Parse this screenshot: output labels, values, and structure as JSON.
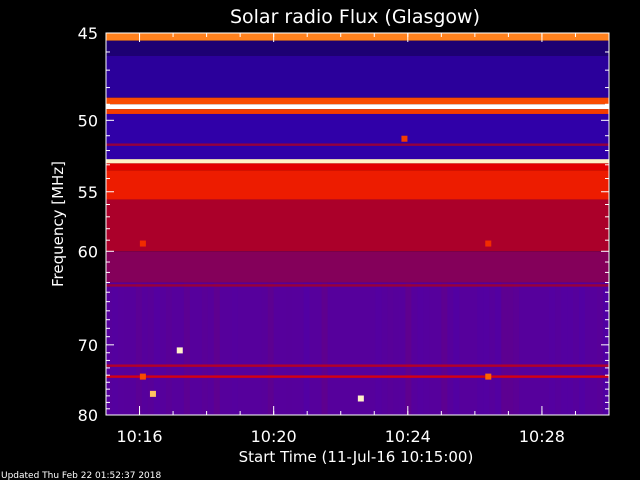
{
  "chart_data": {
    "type": "heatmap",
    "title": "Solar radio Flux (Glasgow)",
    "xlabel": "Start Time (11-Jul-16 10:15:00)",
    "ylabel": "Frequency [MHz]",
    "x_range": [
      "10:15:00",
      "10:30:00"
    ],
    "y_range_mhz": [
      45,
      80
    ],
    "y_scale": "reciprocal",
    "x_ticks": [
      "10:16",
      "10:20",
      "10:24",
      "10:28"
    ],
    "x_tick_minutes": [
      1,
      5,
      9,
      13
    ],
    "y_ticks": [
      "45",
      "50",
      "55",
      "60",
      "70",
      "80"
    ],
    "y_tick_values": [
      45,
      50,
      55,
      60,
      70,
      80
    ],
    "colormap": [
      "#000000",
      "#1e0078",
      "#3c00c8",
      "#5a0096",
      "#a00032",
      "#e60000",
      "#ff6400",
      "#ffdc78",
      "#ffffff"
    ],
    "bands": [
      {
        "f0": 45.0,
        "f1": 45.4,
        "level": 0.78
      },
      {
        "f0": 45.4,
        "f1": 46.2,
        "level": 0.12
      },
      {
        "f0": 46.2,
        "f1": 48.6,
        "level": 0.18
      },
      {
        "f0": 48.6,
        "f1": 49.0,
        "level": 0.72
      },
      {
        "f0": 49.0,
        "f1": 49.3,
        "level": 1.0
      },
      {
        "f0": 49.3,
        "f1": 49.6,
        "level": 0.7
      },
      {
        "f0": 49.6,
        "f1": 52.6,
        "level": 0.2
      },
      {
        "f0": 52.6,
        "f1": 52.9,
        "level": 0.95
      },
      {
        "f0": 52.9,
        "f1": 53.4,
        "level": 0.62
      },
      {
        "f0": 53.4,
        "f1": 55.6,
        "level": 0.66
      },
      {
        "f0": 55.6,
        "f1": 60.0,
        "level": 0.52
      },
      {
        "f0": 60.0,
        "f1": 63.0,
        "level": 0.45
      },
      {
        "f0": 63.0,
        "f1": 80.0,
        "level": 0.36
      }
    ],
    "lines": [
      {
        "f": 51.6,
        "level": 0.5
      },
      {
        "f": 63.3,
        "level": 0.5
      },
      {
        "f": 72.7,
        "level": 0.55
      },
      {
        "f": 74.2,
        "level": 0.62
      }
    ],
    "spots": [
      {
        "t": 1.1,
        "f": 59.3,
        "level": 0.68
      },
      {
        "t": 1.1,
        "f": 74.2,
        "level": 0.72
      },
      {
        "t": 2.2,
        "f": 70.7,
        "level": 0.95
      },
      {
        "t": 1.4,
        "f": 76.7,
        "level": 0.85
      },
      {
        "t": 8.9,
        "f": 51.2,
        "level": 0.7
      },
      {
        "t": 11.4,
        "f": 59.3,
        "level": 0.68
      },
      {
        "t": 11.4,
        "f": 74.2,
        "level": 0.75
      },
      {
        "t": 7.6,
        "f": 77.4,
        "level": 0.95
      }
    ]
  },
  "footer": {
    "updated": "Updated Thu Feb 22 01:52:37 2018"
  }
}
